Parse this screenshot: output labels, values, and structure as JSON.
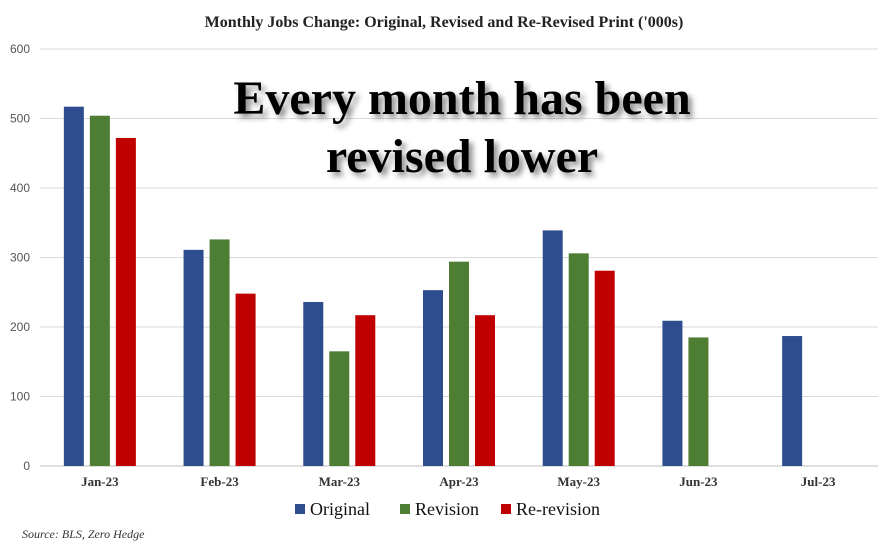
{
  "chart_data": {
    "type": "bar",
    "title": "Monthly Jobs Change: Original, Revised and Re-Revised Print ('000s)",
    "annotation": [
      "Every month has been",
      "revised lower"
    ],
    "source": "Source: BLS, Zero Hedge",
    "categories": [
      "Jan-23",
      "Feb-23",
      "Mar-23",
      "Apr-23",
      "May-23",
      "Jun-23",
      "Jul-23"
    ],
    "series": [
      {
        "name": "Original",
        "color": "#2E4D8F",
        "values": [
          517,
          311,
          236,
          253,
          339,
          209,
          187
        ]
      },
      {
        "name": "Revision",
        "color": "#4E7D34",
        "values": [
          504,
          326,
          165,
          294,
          306,
          185,
          null
        ]
      },
      {
        "name": "Re-revision",
        "color": "#C00000",
        "values": [
          472,
          248,
          217,
          217,
          281,
          null,
          null
        ]
      }
    ],
    "ylim": [
      0,
      600
    ],
    "yticks": [
      0,
      100,
      200,
      300,
      400,
      500,
      600
    ],
    "grid": true,
    "legend_position": "bottom"
  }
}
